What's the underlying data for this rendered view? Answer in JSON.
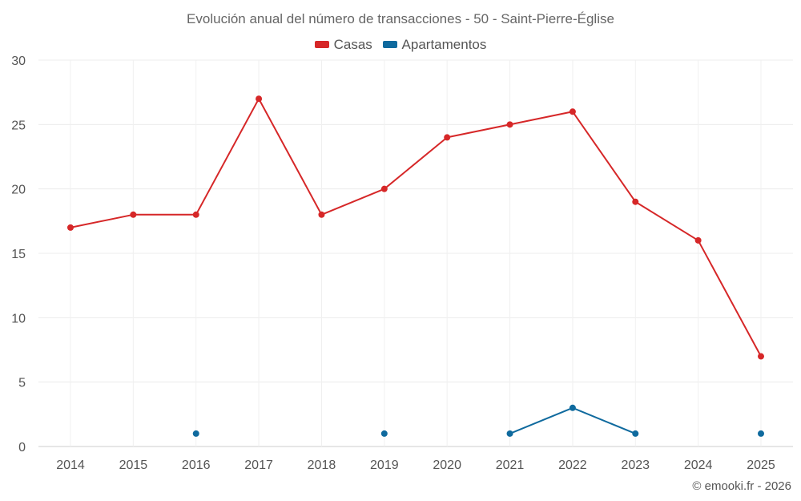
{
  "chart_data": {
    "type": "line",
    "title": "Evolución anual del número de transacciones - 50 - Saint-Pierre-Église",
    "xlabel": "",
    "ylabel": "",
    "categories": [
      "2014",
      "2015",
      "2016",
      "2017",
      "2018",
      "2019",
      "2020",
      "2021",
      "2022",
      "2023",
      "2024",
      "2025"
    ],
    "ylim": [
      0,
      30
    ],
    "yticks": [
      0,
      5,
      10,
      15,
      20,
      25,
      30
    ],
    "grid": true,
    "legend_position": "top",
    "series": [
      {
        "name": "Casas",
        "color": "#d62728",
        "values": [
          17,
          18,
          18,
          27,
          18,
          20,
          24,
          25,
          26,
          19,
          16,
          7
        ]
      },
      {
        "name": "Apartamentos",
        "color": "#0f6a9e",
        "values": [
          null,
          null,
          1,
          null,
          null,
          1,
          null,
          1,
          3,
          1,
          null,
          1
        ]
      }
    ]
  },
  "credit": "© emooki.fr - 2026"
}
